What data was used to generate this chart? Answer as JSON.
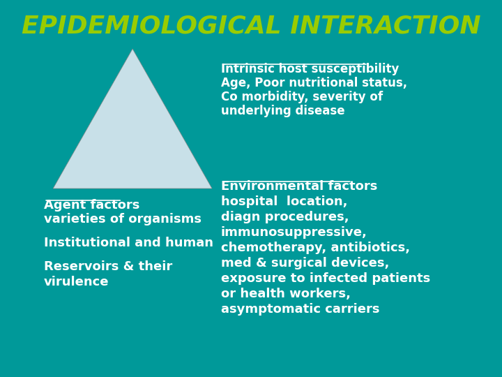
{
  "bg_color": "#009999",
  "title": "EPIDEMIOLOGICAL INTERACTION",
  "title_color": "#99cc00",
  "title_fontsize": 26,
  "triangle_color": "#c8e0e8",
  "triangle_edge_color": "#888888",
  "text_color": "#ffffff",
  "top_right_heading": "Intrinsic host susceptibility",
  "top_right_lines": [
    "Age, Poor nutritional status,",
    "Co morbidity, severity of",
    "underlying disease"
  ],
  "mid_right_heading": "Environmental factors",
  "mid_right_lines": [
    "hospital  location,",
    "diagn procedures,",
    "immunosuppressive,",
    "chemotherapy, antibiotics,",
    "med & surgical devices,",
    "exposure to infected patients",
    "or health workers,",
    "asymptomatic carriers"
  ],
  "left_heading": "Agent factors",
  "left_lines": [
    "varieties of organisms",
    "",
    "Institutional and human",
    "",
    "Reservoirs & their",
    "virulence"
  ]
}
